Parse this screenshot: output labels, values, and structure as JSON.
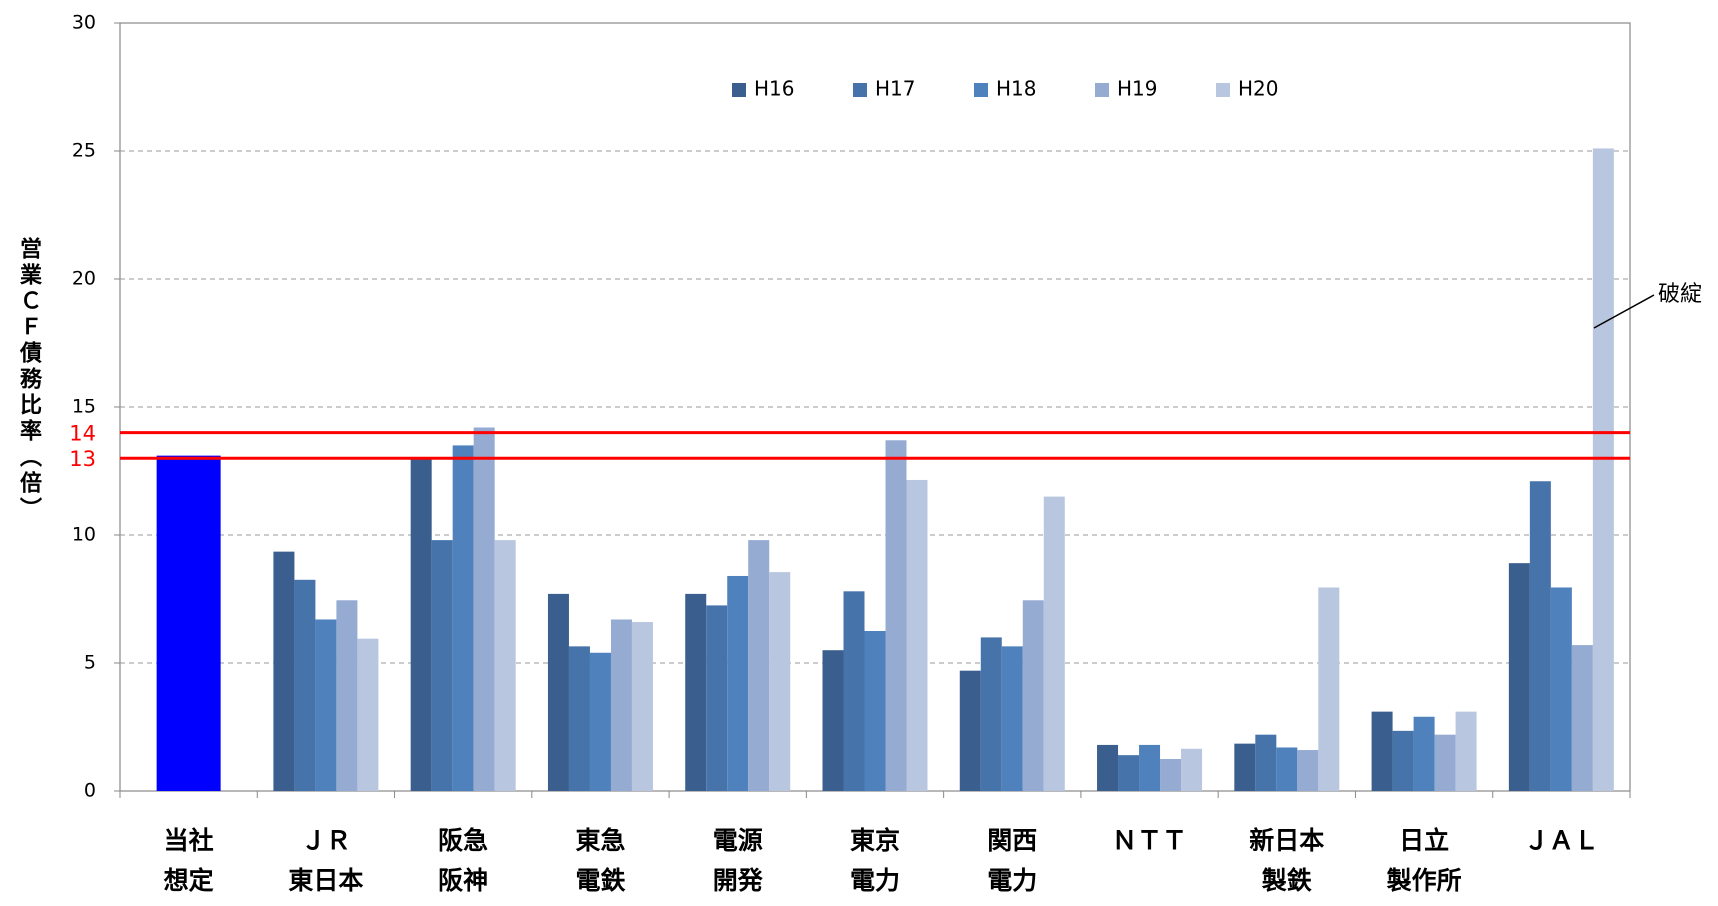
{
  "chart_data": {
    "type": "bar",
    "y_label": "営業ＣＦ債務比率（倍）",
    "categories": [
      "当社\n想定",
      "ＪＲ\n東日本",
      "阪急\n阪神",
      "東急\n電鉄",
      "電源\n開発",
      "東京\n電力",
      "関西\n電力",
      "ＮＴＴ",
      "新日本\n製鉄",
      "日立\n製作所",
      "ＪＡＬ"
    ],
    "highlight": {
      "value": 13.1,
      "color": "#0000ff"
    },
    "series": [
      {
        "name": "H16",
        "color": "#3a5f8f",
        "values": [
          null,
          9.35,
          13.0,
          7.7,
          7.7,
          5.5,
          4.7,
          1.8,
          1.85,
          3.1,
          8.9
        ]
      },
      {
        "name": "H17",
        "color": "#4673aa",
        "values": [
          null,
          8.25,
          9.8,
          5.65,
          7.25,
          7.8,
          6.0,
          1.4,
          2.2,
          2.35,
          12.1
        ]
      },
      {
        "name": "H18",
        "color": "#4f81bd",
        "values": [
          null,
          6.7,
          13.5,
          5.4,
          8.4,
          6.25,
          5.65,
          1.8,
          1.7,
          2.9,
          7.95
        ]
      },
      {
        "name": "H19",
        "color": "#95abd2",
        "values": [
          null,
          7.45,
          14.2,
          6.7,
          9.8,
          13.7,
          7.45,
          1.25,
          1.6,
          2.2,
          5.7
        ]
      },
      {
        "name": "H20",
        "color": "#b9c6e0",
        "values": [
          null,
          5.95,
          9.8,
          6.6,
          8.55,
          12.15,
          11.5,
          1.65,
          7.95,
          3.1,
          25.1
        ]
      }
    ],
    "reference_lines": [
      {
        "value": 14,
        "color": "#ff0000"
      },
      {
        "value": 13,
        "color": "#ff0000"
      }
    ],
    "annotation": {
      "text": "破綻"
    },
    "ylim": [
      0,
      30
    ],
    "yticks": [
      0,
      5,
      10,
      15,
      20,
      25,
      30
    ],
    "grid": true
  }
}
